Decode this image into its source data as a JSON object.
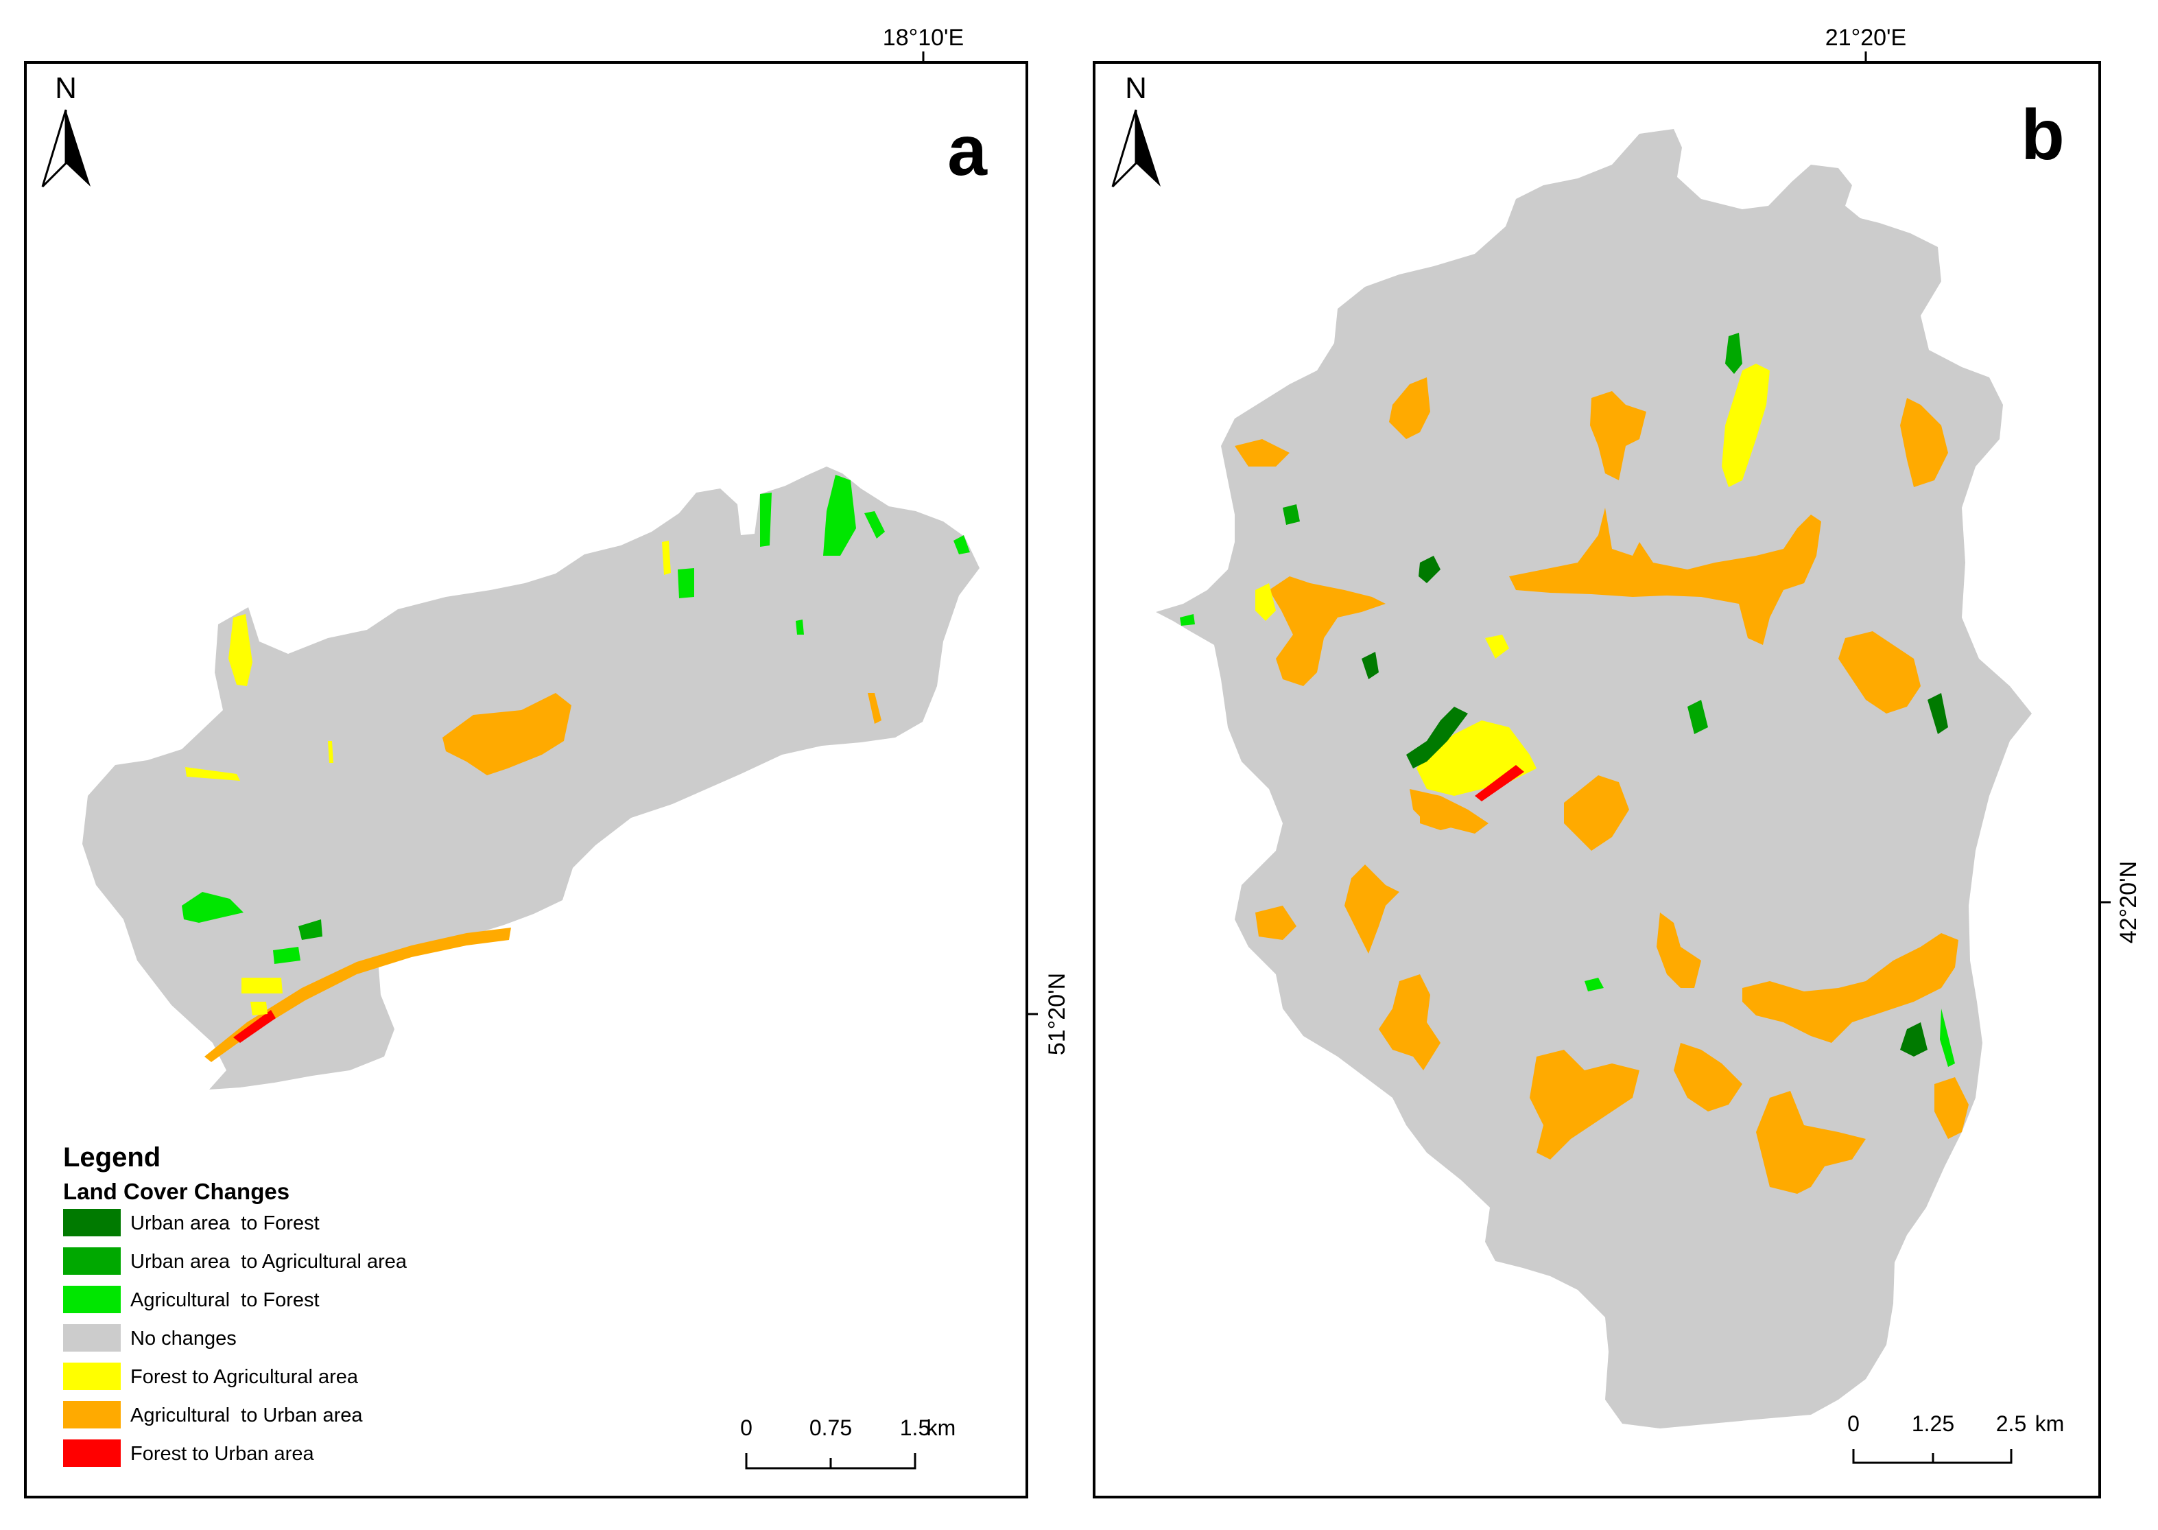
{
  "colors": {
    "urban_to_forest": "#007a00",
    "urban_to_agri": "#00a800",
    "agri_to_forest": "#00e600",
    "no_changes": "#cccccc",
    "forest_to_agri": "#ffff00",
    "agri_to_urban": "#ffaa00",
    "forest_to_urban": "#ff0000"
  },
  "panel_a": {
    "letter": "a",
    "north": "N",
    "lon_label": "18°10'E",
    "lat_label": "51°20'N",
    "scale": {
      "zero": "0",
      "mid": "0.75",
      "end": "1.5",
      "unit": "km"
    }
  },
  "panel_b": {
    "letter": "b",
    "north": "N",
    "lon_label": "21°20'E",
    "lat_label": "42°20'N",
    "scale": {
      "zero": "0",
      "mid": "1.25",
      "end": "2.5",
      "unit": "km"
    }
  },
  "legend": {
    "title": "Legend",
    "subtitle": "Land Cover Changes",
    "items": [
      {
        "label": "Urban area  to Forest",
        "color": "#007a00"
      },
      {
        "label": "Urban area  to Agricultural area",
        "color": "#00a800"
      },
      {
        "label": "Agricultural  to Forest",
        "color": "#00e600"
      },
      {
        "label": "No changes",
        "color": "#cccccc"
      },
      {
        "label": "Forest to Agricultural area",
        "color": "#ffff00"
      },
      {
        "label": "Agricultural  to Urban area",
        "color": "#ffaa00"
      },
      {
        "label": "Forest to Urban area",
        "color": "#ff0000"
      }
    ]
  }
}
